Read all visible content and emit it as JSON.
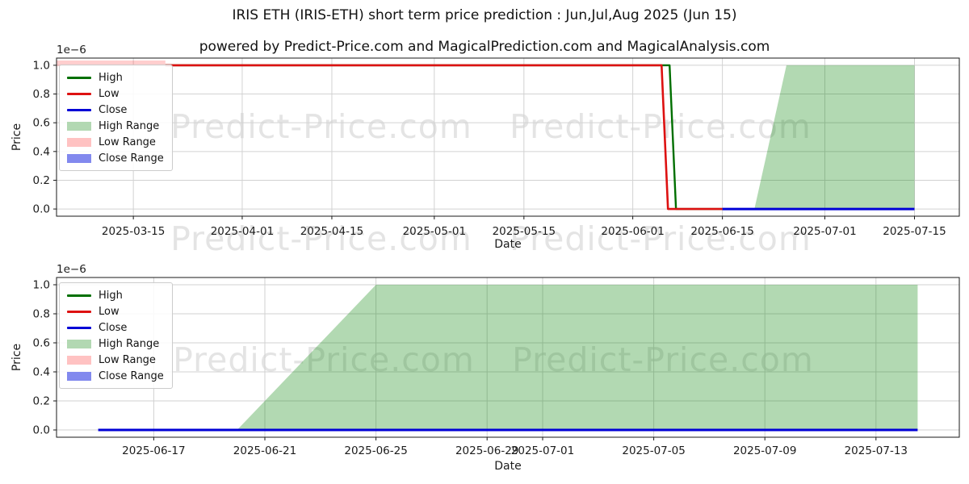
{
  "title": "IRIS ETH (IRIS-ETH) short term price prediction : Jun,Jul,Aug 2025 (Jun 15)",
  "subtitle": "powered by Predict-Price.com and MagicalPrediction.com and MagicalAnalysis.com",
  "watermark_text": "Predict-Price.com",
  "chart_data": [
    {
      "type": "line",
      "ylabel": "Price",
      "xlabel": "Date",
      "y_offset_label": "1e−6",
      "y_unit": "1e-6",
      "ylim": [
        -0.05,
        1.05
      ],
      "grid": true,
      "legend_position": "upper left",
      "yticks": [
        {
          "value": 0.0,
          "label": "0.0"
        },
        {
          "value": 0.2,
          "label": "0.2"
        },
        {
          "value": 0.4,
          "label": "0.4"
        },
        {
          "value": 0.6,
          "label": "0.6"
        },
        {
          "value": 0.8,
          "label": "0.8"
        },
        {
          "value": 1.0,
          "label": "1.0"
        }
      ],
      "xlim": [
        "2025-03-03",
        "2025-07-22"
      ],
      "xticks": [
        {
          "date": "2025-03-15",
          "label": "2025-03-15"
        },
        {
          "date": "2025-04-01",
          "label": "2025-04-01"
        },
        {
          "date": "2025-04-15",
          "label": "2025-04-15"
        },
        {
          "date": "2025-05-01",
          "label": "2025-05-01"
        },
        {
          "date": "2025-05-15",
          "label": "2025-05-15"
        },
        {
          "date": "2025-06-01",
          "label": "2025-06-01"
        },
        {
          "date": "2025-06-15",
          "label": "2025-06-15"
        },
        {
          "date": "2025-07-01",
          "label": "2025-07-01"
        },
        {
          "date": "2025-07-15",
          "label": "2025-07-15"
        }
      ],
      "legend": [
        {
          "label": "High",
          "swatch": "line",
          "color": "#006f00"
        },
        {
          "label": "Low",
          "swatch": "line",
          "color": "#dd1111"
        },
        {
          "label": "Close",
          "swatch": "line",
          "color": "#0000d6"
        },
        {
          "label": "High Range",
          "swatch": "patch",
          "color": "#b2d8b2"
        },
        {
          "label": "Low Range",
          "swatch": "patch",
          "color": "#ffc2c2"
        },
        {
          "label": "Close Range",
          "swatch": "patch",
          "color": "#8289ee"
        }
      ],
      "series": [
        {
          "name": "Low Range",
          "type": "band",
          "color": "rgba(255,60,60,0.25)",
          "x": [
            "2025-03-03",
            "2025-03-20"
          ],
          "upper": [
            1.033,
            1.033
          ],
          "lower": [
            0.995,
            0.995
          ]
        },
        {
          "name": "High Range",
          "type": "band",
          "color": "rgba(0,128,0,0.3)",
          "x": [
            "2025-06-20",
            "2025-06-25",
            "2025-07-15"
          ],
          "upper": [
            0.0,
            1.0,
            1.0
          ],
          "lower": [
            0.0,
            0.0,
            0.0
          ]
        },
        {
          "name": "High",
          "type": "line",
          "color": "#006f00",
          "width": 2.4,
          "points": [
            [
              "2025-03-20",
              1.0
            ],
            [
              "2025-06-06T18:00",
              1.0
            ],
            [
              "2025-06-07T18:00",
              0.0
            ],
            [
              "2025-06-15",
              0.0
            ]
          ]
        },
        {
          "name": "Low",
          "type": "line",
          "color": "#dd1111",
          "width": 2.6,
          "points": [
            [
              "2025-03-20",
              1.0
            ],
            [
              "2025-06-05T12:00",
              1.0
            ],
            [
              "2025-06-06T12:00",
              0.0
            ],
            [
              "2025-06-15",
              0.0
            ]
          ]
        },
        {
          "name": "Close",
          "type": "line",
          "color": "#0000d6",
          "width": 3,
          "points": [
            [
              "2025-06-15",
              0.0
            ],
            [
              "2025-07-15",
              0.0
            ]
          ]
        }
      ]
    },
    {
      "type": "line",
      "ylabel": "Price",
      "xlabel": "Date",
      "y_offset_label": "1e−6",
      "y_unit": "1e-6",
      "ylim": [
        -0.05,
        1.05
      ],
      "grid": true,
      "legend_position": "upper left",
      "yticks": [
        {
          "value": 0.0,
          "label": "0.0"
        },
        {
          "value": 0.2,
          "label": "0.2"
        },
        {
          "value": 0.4,
          "label": "0.4"
        },
        {
          "value": 0.6,
          "label": "0.6"
        },
        {
          "value": 0.8,
          "label": "0.8"
        },
        {
          "value": 1.0,
          "label": "1.0"
        }
      ],
      "xlim": [
        "2025-06-13T12:00",
        "2025-07-16"
      ],
      "xticks": [
        {
          "date": "2025-06-17",
          "label": "2025-06-17"
        },
        {
          "date": "2025-06-21",
          "label": "2025-06-21"
        },
        {
          "date": "2025-06-25",
          "label": "2025-06-25"
        },
        {
          "date": "2025-06-29",
          "label": "2025-06-29"
        },
        {
          "date": "2025-07-01",
          "label": "2025-07-01"
        },
        {
          "date": "2025-07-05",
          "label": "2025-07-05"
        },
        {
          "date": "2025-07-09",
          "label": "2025-07-09"
        },
        {
          "date": "2025-07-13",
          "label": "2025-07-13"
        }
      ],
      "legend": [
        {
          "label": "High",
          "swatch": "line",
          "color": "#006f00"
        },
        {
          "label": "Low",
          "swatch": "line",
          "color": "#dd1111"
        },
        {
          "label": "Close",
          "swatch": "line",
          "color": "#0000d6"
        },
        {
          "label": "High Range",
          "swatch": "patch",
          "color": "#b2d8b2"
        },
        {
          "label": "Low Range",
          "swatch": "patch",
          "color": "#ffc2c2"
        },
        {
          "label": "Close Range",
          "swatch": "patch",
          "color": "#8289ee"
        }
      ],
      "series": [
        {
          "name": "High Range",
          "type": "band",
          "color": "rgba(0,128,0,0.3)",
          "x": [
            "2025-06-20",
            "2025-06-25",
            "2025-07-14T12:00"
          ],
          "upper": [
            0.0,
            1.0,
            1.0
          ],
          "lower": [
            0.0,
            0.0,
            0.0
          ]
        },
        {
          "name": "Close",
          "type": "line",
          "color": "#0000d6",
          "width": 3,
          "points": [
            [
              "2025-06-15",
              0.0
            ],
            [
              "2025-07-14T12:00",
              0.0
            ]
          ]
        }
      ]
    }
  ]
}
